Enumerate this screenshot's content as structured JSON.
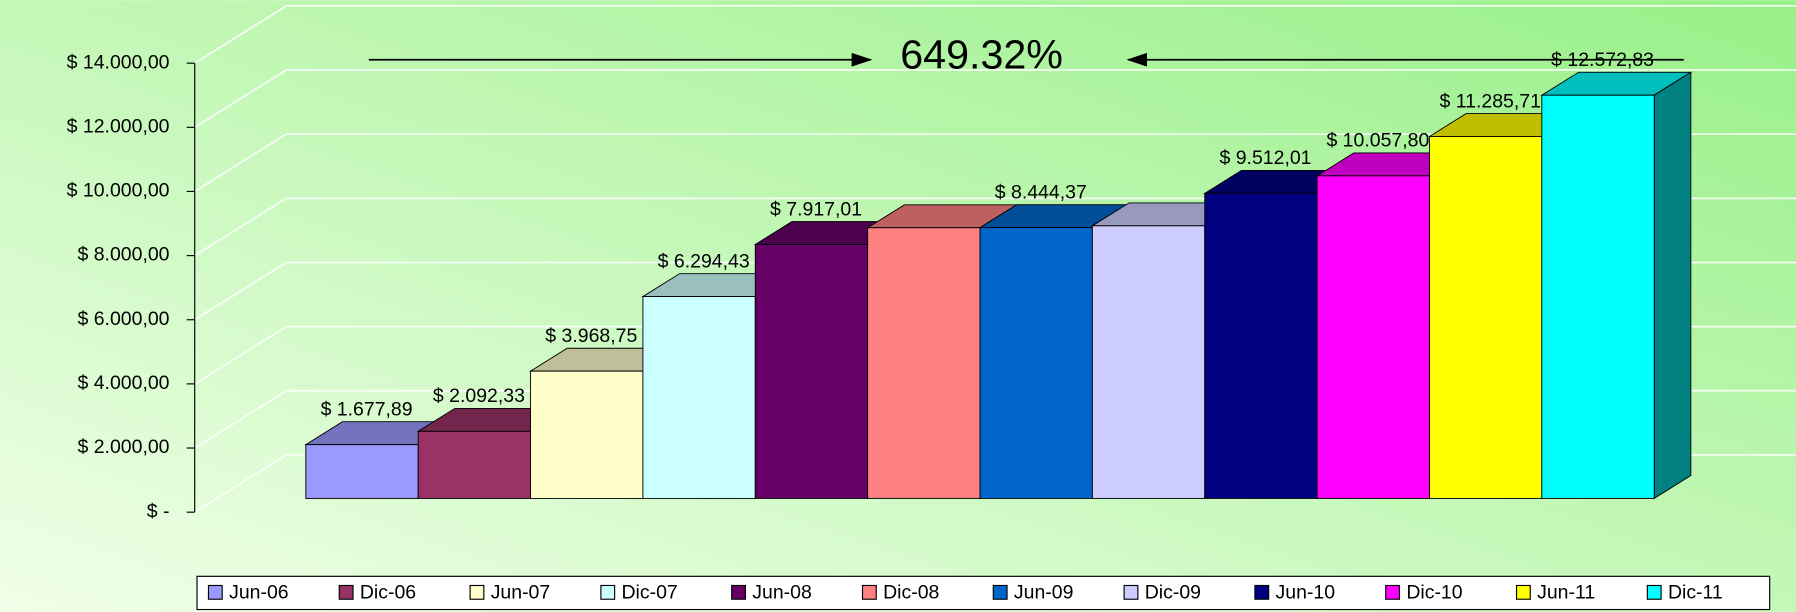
{
  "chart_data": {
    "type": "bar3d",
    "annotation": "649.32%",
    "categories": [
      "Jun-06",
      "Dic-06",
      "Jun-07",
      "Dic-07",
      "Jun-08",
      "Dic-08",
      "Jun-09",
      "Dic-09",
      "Jun-10",
      "Dic-10",
      "Jun-11",
      "Dic-11"
    ],
    "values": [
      1677.89,
      2092.33,
      3968.75,
      6294.43,
      7917.01,
      8440,
      8444.37,
      8500,
      9512.01,
      10057.8,
      11285.71,
      12572.83
    ],
    "value_labels": [
      "$ 1.677,89",
      "$ 2.092,33",
      "$ 3.968,75",
      "$ 6.294,43",
      "$ 7.917,01",
      null,
      "$ 8.444,37",
      null,
      "$ 9.512,01",
      "$ 10.057,80",
      "$ 11.285,71",
      "$ 12.572,83"
    ],
    "colors": [
      "#9999ff",
      "#993366",
      "#ffffcc",
      "#ccffff",
      "#660066",
      "#ff8080",
      "#0066cc",
      "#ccccff",
      "#000080",
      "#ff00ff",
      "#ffff00",
      "#00ffff"
    ],
    "ylim": [
      0,
      14000
    ],
    "yticks": [
      {
        "value": 0,
        "label": "$ -"
      },
      {
        "value": 2000,
        "label": "$ 2.000,00"
      },
      {
        "value": 4000,
        "label": "$ 4.000,00"
      },
      {
        "value": 6000,
        "label": "$ 6.000,00"
      },
      {
        "value": 8000,
        "label": "$ 8.000,00"
      },
      {
        "value": 10000,
        "label": "$ 10.000,00"
      },
      {
        "value": 12000,
        "label": "$ 12.000,00"
      },
      {
        "value": 14000,
        "label": "$ 14.000,00"
      }
    ],
    "grid": true,
    "legend": "bottom"
  }
}
